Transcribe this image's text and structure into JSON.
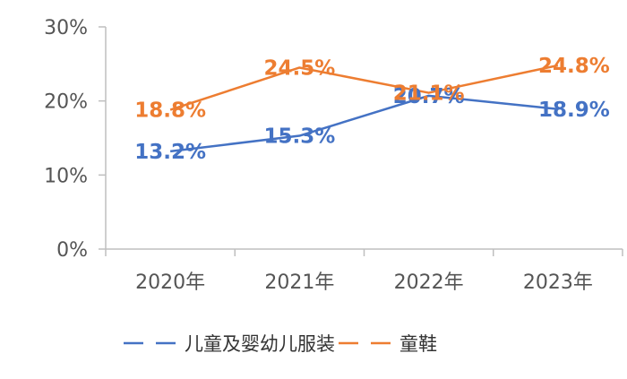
{
  "chart_data": {
    "type": "line",
    "categories": [
      "2020年",
      "2021年",
      "2022年",
      "2023年"
    ],
    "y_ticks": [
      "0%",
      "10%",
      "20%",
      "30%"
    ],
    "ylim": [
      0,
      30
    ],
    "grid": false,
    "legend_position": "bottom",
    "series": [
      {
        "name": "儿童及婴幼儿服装",
        "color": "#4472c4",
        "values": [
          13.2,
          15.3,
          20.7,
          18.9
        ],
        "labels": [
          "13.2%",
          "15.3%",
          "20.7%",
          "18.9%"
        ]
      },
      {
        "name": "童鞋",
        "color": "#ed7d31",
        "values": [
          18.8,
          24.5,
          21.1,
          24.8
        ],
        "labels": [
          "18.8%",
          "24.5%",
          "21.1%",
          "24.8%"
        ]
      }
    ]
  }
}
